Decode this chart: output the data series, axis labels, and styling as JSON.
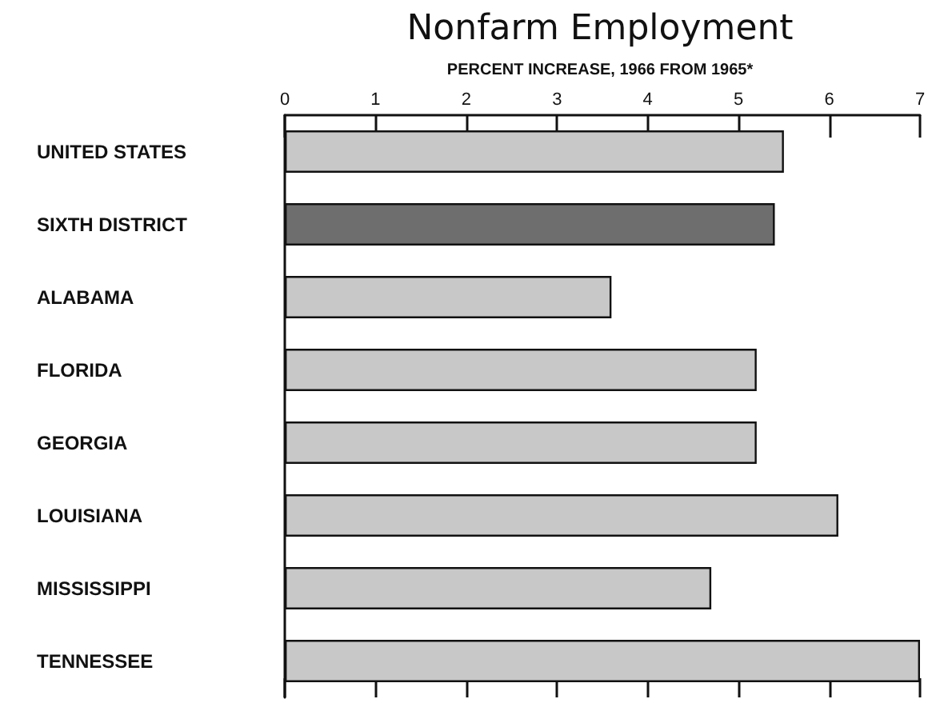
{
  "chart_data": {
    "type": "bar",
    "orientation": "horizontal",
    "title": "Nonfarm Employment",
    "subtitle": "PERCENT INCREASE, 1966 FROM 1965*",
    "categories": [
      "UNITED STATES",
      "SIXTH DISTRICT",
      "ALABAMA",
      "FLORIDA",
      "GEORGIA",
      "LOUISIANA",
      "MISSISSIPPI",
      "TENNESSEE"
    ],
    "values": [
      5.5,
      5.4,
      3.6,
      5.2,
      5.2,
      6.1,
      4.7,
      7.0
    ],
    "colors": [
      "#c8c8c8",
      "#6e6e6e",
      "#c8c8c8",
      "#c8c8c8",
      "#c8c8c8",
      "#c8c8c8",
      "#c8c8c8",
      "#c8c8c8"
    ],
    "xlim": [
      0,
      7
    ],
    "xticks": [
      0,
      1,
      2,
      3,
      4,
      5,
      6,
      7
    ],
    "grid": false
  }
}
